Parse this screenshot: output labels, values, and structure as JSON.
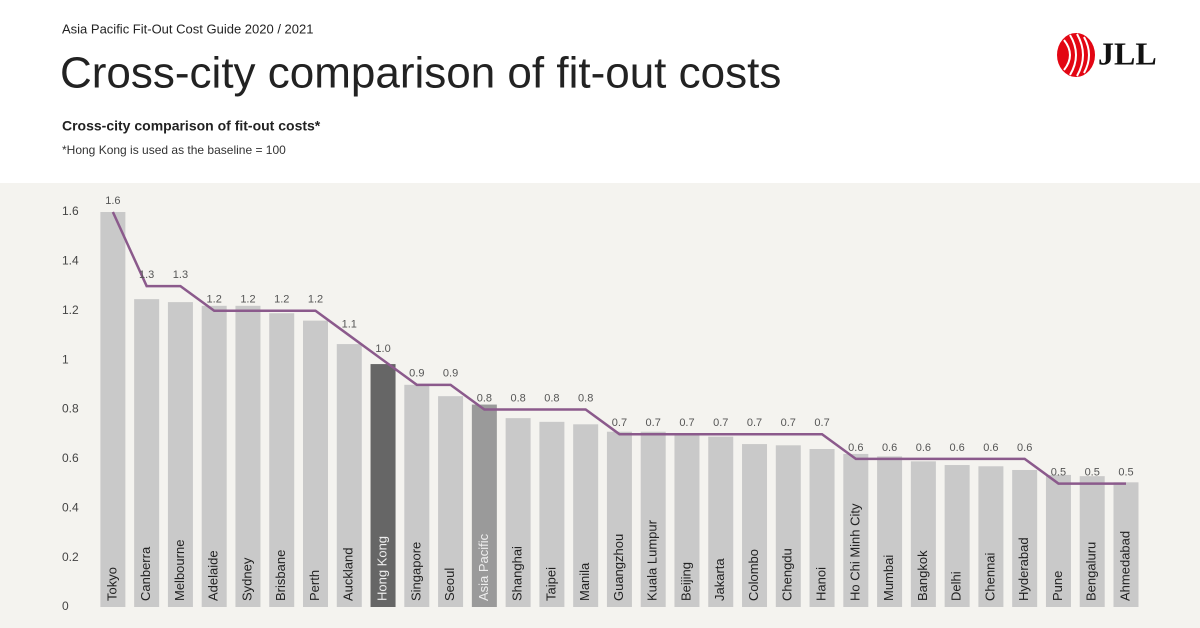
{
  "header": {
    "guide": "Asia Pacific Fit-Out Cost Guide 2020 / 2021",
    "title": "Cross-city comparison of fit-out costs",
    "logo": "JLL"
  },
  "chart_data": {
    "type": "bar",
    "title": "Cross-city comparison of fit-out costs*",
    "subtitle": "*Hong Kong is used as the baseline = 100",
    "categories": [
      "Tokyo",
      "Canberra",
      "Melbourne",
      "Adelaide",
      "Sydney",
      "Brisbane",
      "Perth",
      "Auckland",
      "Hong Kong",
      "Singapore",
      "Seoul",
      "Asia Pacific",
      "Shanghai",
      "Taipei",
      "Manila",
      "Guangzhou",
      "Kuala Lumpur",
      "Beijing",
      "Jakarta",
      "Colombo",
      "Chengdu",
      "Hanoi",
      "Ho Chi Minh City",
      "Mumbai",
      "Bangkok",
      "Delhi",
      "Chennai",
      "Hyderabad",
      "Pune",
      "Bengaluru",
      "Ahmedabad"
    ],
    "series": [
      {
        "type": "bar",
        "color": "#c9c9c9",
        "colors": [
          "#c9c9c9",
          "#c9c9c9",
          "#c9c9c9",
          "#c9c9c9",
          "#c9c9c9",
          "#c9c9c9",
          "#c9c9c9",
          "#c9c9c9",
          "#666666",
          "#c9c9c9",
          "#c9c9c9",
          "#9a9a9a",
          "#c9c9c9",
          "#c9c9c9",
          "#c9c9c9",
          "#c9c9c9",
          "#c9c9c9",
          "#c9c9c9",
          "#c9c9c9",
          "#c9c9c9",
          "#c9c9c9",
          "#c9c9c9",
          "#c9c9c9",
          "#c9c9c9",
          "#c9c9c9",
          "#c9c9c9",
          "#c9c9c9",
          "#c9c9c9",
          "#c9c9c9",
          "#c9c9c9",
          "#c9c9c9"
        ],
        "values": [
          1.6,
          1.247,
          1.235,
          1.22,
          1.22,
          1.19,
          1.16,
          1.065,
          0.984,
          0.9,
          0.854,
          0.82,
          0.765,
          0.75,
          0.74,
          0.71,
          0.71,
          0.7,
          0.69,
          0.66,
          0.655,
          0.64,
          0.62,
          0.61,
          0.59,
          0.575,
          0.57,
          0.555,
          0.535,
          0.53,
          0.505
        ]
      },
      {
        "type": "line",
        "color": "#8b5a8c",
        "values": [
          1.6,
          1.3,
          1.3,
          1.2,
          1.2,
          1.2,
          1.2,
          1.1,
          1,
          0.9,
          0.9,
          0.8,
          0.8,
          0.8,
          0.8,
          0.7,
          0.7,
          0.7,
          0.7,
          0.7,
          0.7,
          0.7,
          0.6,
          0.6,
          0.6,
          0.6,
          0.6,
          0.6,
          0.5,
          0.5,
          0.5
        ],
        "value_labels": [
          "1.6",
          "1.3",
          "1.3",
          "1.2",
          "1.2",
          "1.2",
          "1.2",
          "1.1",
          "1.0",
          "0.9",
          "0.9",
          "0.8",
          "0.8",
          "0.8",
          "0.8",
          "0.7",
          "0.7",
          "0.7",
          "0.7",
          "0.7",
          "0.7",
          "0.7",
          "0.6",
          "0.6",
          "0.6",
          "0.6",
          "0.6",
          "0.6",
          "0.5",
          "0.5",
          "0.5"
        ]
      }
    ],
    "ylim": [
      0,
      1.6
    ],
    "yticks": [
      0,
      0.2,
      0.4,
      0.6,
      0.8,
      1,
      1.2,
      1.4,
      1.6
    ],
    "grid": false
  }
}
